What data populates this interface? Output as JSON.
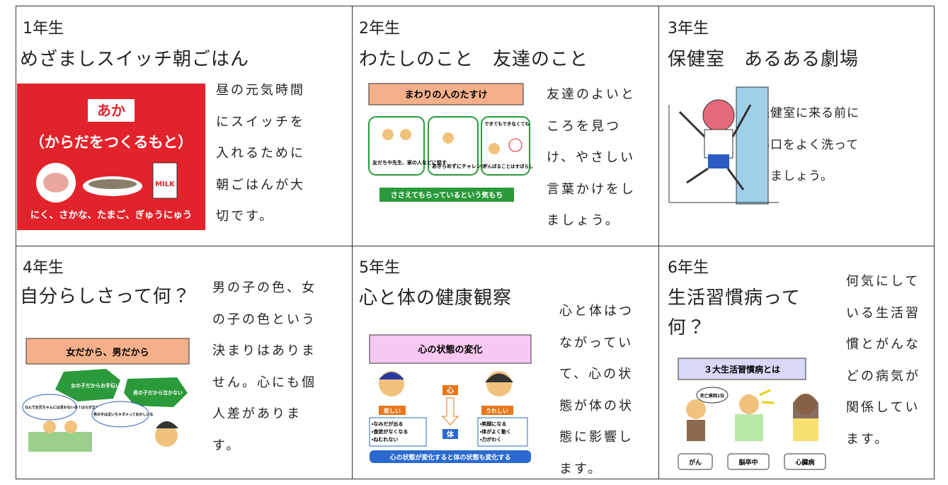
{
  "cells": [
    {
      "grade": "1年生",
      "title": [
        "めざましスイッチ朝ごはん"
      ],
      "text": [
        "昼の元気時間",
        "にスイッチを",
        "入れるために",
        "朝ごはんが大",
        "切です。"
      ],
      "figure": [
        "あか",
        "（からだをつくるもと）",
        "にく、さかな、たまご、ぎゅうにゅう"
      ]
    },
    {
      "grade": "2年生",
      "title": [
        "わたしのこと　友達のこと"
      ],
      "text": [
        "友達のよいと",
        "ころを見つ",
        "け、やさしい",
        "言葉かけをし",
        "ましょう。"
      ],
      "figure": [
        "まわりの人のたすけ",
        "友だちや先生、家の人などに話す",
        "あきらめずにチャレンジ",
        "できてもできなくても",
        "がんばることはすばらしい",
        "ささえてもらっているという気もち"
      ]
    },
    {
      "grade": "3年生",
      "title": [
        "保健室　あるある劇場"
      ],
      "text": [
        "保健室に来る前に",
        "傷口をよく洗って",
        "きましょう。"
      ],
      "figure": []
    },
    {
      "grade": "4年生",
      "title": [
        "自分らしさって何？"
      ],
      "text": [
        "男の子の色、女",
        "の子の色という",
        "決まりはありま",
        "せん。心にも個",
        "人差がありま",
        "す。"
      ],
      "figure": [
        "女だから、男だから",
        "女の子だからお手伝いして",
        "男の子だから泣かない",
        "なんでお兄ちゃんには言わないの？はらが立つ",
        "男の子は泣いちゃダメっておかしいな"
      ]
    },
    {
      "grade": "5年生",
      "title": [
        "心と体の健康観察"
      ],
      "text": [
        "心と体はつ",
        "ながってい",
        "て、心の状",
        "態が体の状",
        "態に影響し",
        "ます。"
      ],
      "figure": [
        "心の状態の変化",
        "心",
        "体",
        "悲しい",
        "うれしい",
        "・なみだが出る",
        "・食欲がなくなる",
        "・ねむれない",
        "・笑顔になる",
        "・体がよく動く",
        "・力がわく",
        "心の状態が変化すると体の状態も変化する"
      ]
    },
    {
      "grade": "6年生",
      "title": [
        "生活習慣病って",
        "何？"
      ],
      "text": [
        "何気にして",
        "いる生活習",
        "慣とがんな",
        "どの病気が",
        "関係してい",
        "ます。"
      ],
      "figure": [
        "３大生活習慣病とは",
        "死亡原因1位",
        "がん",
        "脳卒中",
        "心臓病"
      ]
    }
  ]
}
